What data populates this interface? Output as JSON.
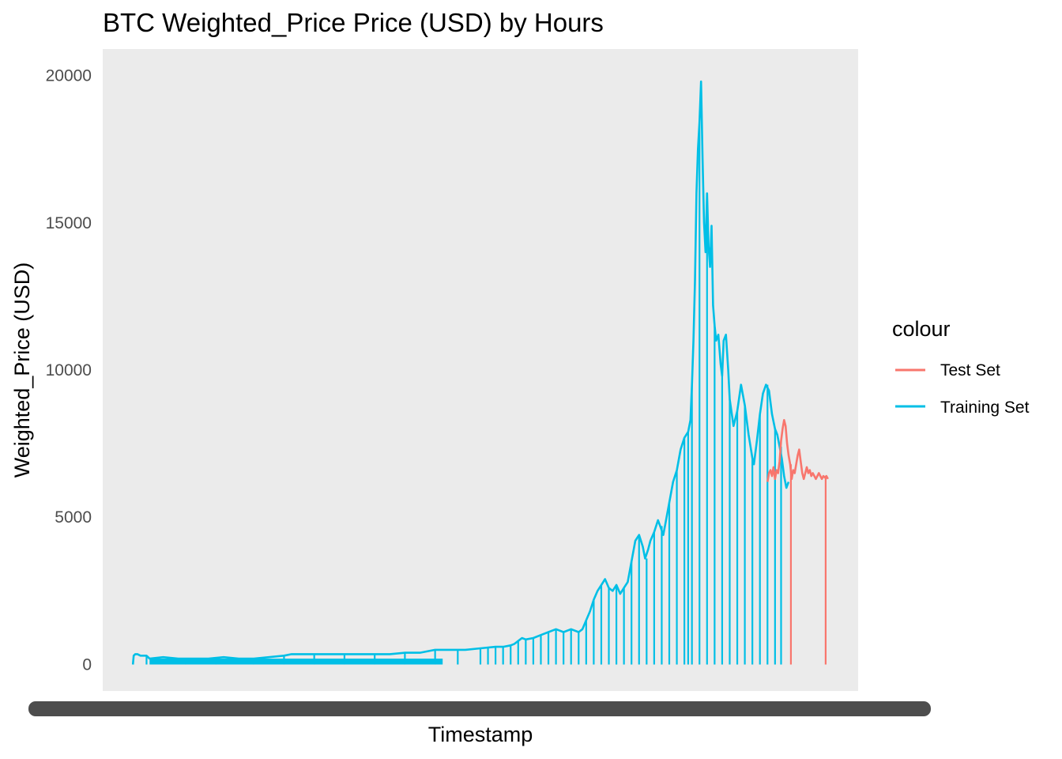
{
  "chart_data": {
    "type": "line",
    "title": "BTC Weighted_Price Price (USD) by Hours",
    "xlabel": "Timestamp",
    "ylabel": "Weighted_Price (USD)",
    "ylim": [
      -900,
      20900
    ],
    "y_ticks": [
      "0",
      "5000",
      "10000",
      "15000",
      "20000"
    ],
    "x_tick_labels": "overplotted (illegible)",
    "grid": false,
    "panel_background": "#ebebeb",
    "legend": {
      "title": "colour",
      "position": "right"
    },
    "series": [
      {
        "name": "Test Set",
        "color": "#f8766d",
        "points": [
          [
            0.88,
            6200
          ],
          [
            0.882,
            6500
          ],
          [
            0.884,
            6600
          ],
          [
            0.886,
            6400
          ],
          [
            0.888,
            6700
          ],
          [
            0.89,
            6300
          ],
          [
            0.892,
            6600
          ],
          [
            0.894,
            6500
          ],
          [
            0.896,
            6900
          ],
          [
            0.898,
            7600
          ],
          [
            0.9,
            8000
          ],
          [
            0.902,
            8300
          ],
          [
            0.904,
            8100
          ],
          [
            0.906,
            7500
          ],
          [
            0.908,
            7100
          ],
          [
            0.91,
            6800
          ],
          [
            0.912,
            6300
          ],
          [
            0.914,
            6600
          ],
          [
            0.916,
            6500
          ],
          [
            0.918,
            6800
          ],
          [
            0.92,
            7100
          ],
          [
            0.922,
            7300
          ],
          [
            0.924,
            6900
          ],
          [
            0.926,
            6500
          ],
          [
            0.928,
            6300
          ],
          [
            0.93,
            6500
          ],
          [
            0.932,
            6700
          ],
          [
            0.934,
            6500
          ],
          [
            0.936,
            6600
          ],
          [
            0.938,
            6400
          ],
          [
            0.94,
            6500
          ],
          [
            0.942,
            6400
          ],
          [
            0.944,
            6300
          ],
          [
            0.946,
            6400
          ],
          [
            0.948,
            6500
          ],
          [
            0.95,
            6400
          ],
          [
            0.952,
            6300
          ],
          [
            0.954,
            6400
          ],
          [
            0.956,
            6350
          ],
          [
            0.958,
            6400
          ],
          [
            0.96,
            6300
          ]
        ],
        "drops": [
          0.911,
          0.957
        ]
      },
      {
        "name": "Training Set",
        "color": "#00bfe6",
        "points": [
          [
            0.04,
            0
          ],
          [
            0.041,
            300
          ],
          [
            0.043,
            350
          ],
          [
            0.046,
            350
          ],
          [
            0.05,
            300
          ],
          [
            0.058,
            300
          ],
          [
            0.062,
            200
          ],
          [
            0.08,
            250
          ],
          [
            0.1,
            200
          ],
          [
            0.12,
            200
          ],
          [
            0.14,
            200
          ],
          [
            0.16,
            250
          ],
          [
            0.18,
            200
          ],
          [
            0.2,
            200
          ],
          [
            0.22,
            250
          ],
          [
            0.24,
            300
          ],
          [
            0.25,
            350
          ],
          [
            0.26,
            350
          ],
          [
            0.28,
            350
          ],
          [
            0.3,
            350
          ],
          [
            0.32,
            350
          ],
          [
            0.34,
            350
          ],
          [
            0.36,
            350
          ],
          [
            0.38,
            350
          ],
          [
            0.4,
            400
          ],
          [
            0.42,
            400
          ],
          [
            0.44,
            500
          ],
          [
            0.46,
            500
          ],
          [
            0.48,
            500
          ],
          [
            0.5,
            550
          ],
          [
            0.52,
            600
          ],
          [
            0.53,
            600
          ],
          [
            0.54,
            650
          ],
          [
            0.545,
            700
          ],
          [
            0.55,
            800
          ],
          [
            0.555,
            900
          ],
          [
            0.56,
            850
          ],
          [
            0.57,
            900
          ],
          [
            0.58,
            1000
          ],
          [
            0.59,
            1100
          ],
          [
            0.6,
            1200
          ],
          [
            0.61,
            1100
          ],
          [
            0.62,
            1200
          ],
          [
            0.63,
            1100
          ],
          [
            0.635,
            1200
          ],
          [
            0.64,
            1500
          ],
          [
            0.645,
            1800
          ],
          [
            0.65,
            2200
          ],
          [
            0.655,
            2500
          ],
          [
            0.66,
            2700
          ],
          [
            0.665,
            2900
          ],
          [
            0.67,
            2600
          ],
          [
            0.675,
            2500
          ],
          [
            0.68,
            2700
          ],
          [
            0.685,
            2400
          ],
          [
            0.69,
            2600
          ],
          [
            0.695,
            2800
          ],
          [
            0.7,
            3500
          ],
          [
            0.705,
            4200
          ],
          [
            0.71,
            4400
          ],
          [
            0.715,
            4000
          ],
          [
            0.718,
            3600
          ],
          [
            0.722,
            3900
          ],
          [
            0.725,
            4200
          ],
          [
            0.73,
            4500
          ],
          [
            0.735,
            4900
          ],
          [
            0.738,
            4700
          ],
          [
            0.742,
            4400
          ],
          [
            0.745,
            4800
          ],
          [
            0.75,
            5500
          ],
          [
            0.755,
            6200
          ],
          [
            0.76,
            6600
          ],
          [
            0.765,
            7300
          ],
          [
            0.77,
            7700
          ],
          [
            0.775,
            7900
          ],
          [
            0.778,
            8300
          ],
          [
            0.78,
            9500
          ],
          [
            0.782,
            11000
          ],
          [
            0.784,
            13000
          ],
          [
            0.786,
            16000
          ],
          [
            0.788,
            17500
          ],
          [
            0.79,
            18400
          ],
          [
            0.792,
            19800
          ],
          [
            0.794,
            17200
          ],
          [
            0.796,
            15000
          ],
          [
            0.798,
            14000
          ],
          [
            0.8,
            16000
          ],
          [
            0.802,
            14200
          ],
          [
            0.804,
            13500
          ],
          [
            0.806,
            14900
          ],
          [
            0.808,
            12200
          ],
          [
            0.81,
            11500
          ],
          [
            0.812,
            11000
          ],
          [
            0.815,
            11200
          ],
          [
            0.818,
            10200
          ],
          [
            0.82,
            9800
          ],
          [
            0.822,
            11000
          ],
          [
            0.825,
            11200
          ],
          [
            0.828,
            10000
          ],
          [
            0.83,
            9000
          ],
          [
            0.835,
            8100
          ],
          [
            0.84,
            8600
          ],
          [
            0.845,
            9500
          ],
          [
            0.85,
            8800
          ],
          [
            0.855,
            7800
          ],
          [
            0.86,
            7000
          ],
          [
            0.862,
            6800
          ],
          [
            0.866,
            7600
          ],
          [
            0.87,
            8500
          ],
          [
            0.874,
            9200
          ],
          [
            0.878,
            9500
          ],
          [
            0.882,
            9300
          ],
          [
            0.886,
            8500
          ],
          [
            0.89,
            8000
          ],
          [
            0.893,
            7800
          ],
          [
            0.896,
            7400
          ],
          [
            0.899,
            7000
          ],
          [
            0.902,
            6400
          ],
          [
            0.905,
            6000
          ],
          [
            0.908,
            6200
          ]
        ],
        "drops": [
          0.058,
          0.11,
          0.15,
          0.2,
          0.24,
          0.28,
          0.32,
          0.36,
          0.4,
          0.44,
          0.47,
          0.5,
          0.51,
          0.52,
          0.53,
          0.54,
          0.55,
          0.56,
          0.57,
          0.58,
          0.59,
          0.6,
          0.61,
          0.62,
          0.63,
          0.64,
          0.65,
          0.66,
          0.67,
          0.68,
          0.69,
          0.7,
          0.71,
          0.72,
          0.73,
          0.74,
          0.75,
          0.76,
          0.77,
          0.775,
          0.78,
          0.79,
          0.8,
          0.81,
          0.82,
          0.83,
          0.84,
          0.85,
          0.86,
          0.87,
          0.88,
          0.89,
          0.898
        ]
      }
    ]
  }
}
